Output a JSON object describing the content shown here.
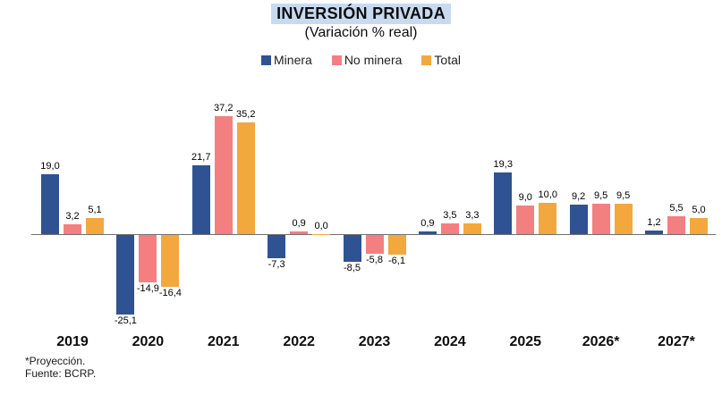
{
  "header": {
    "title": "INVERSIÓN PRIVADA",
    "subtitle": "(Variación % real)"
  },
  "footer": {
    "note": "*Proyección.",
    "source": "Fuente: BCRP."
  },
  "colors": {
    "title_highlight": "#c8daf0",
    "axis_line": "#707070",
    "minera": "#2f5293",
    "no_minera": "#f47f81",
    "total": "#f3a83e"
  },
  "chart_data": {
    "type": "bar",
    "title": "INVERSIÓN PRIVADA",
    "subtitle": "(Variación % real)",
    "categories": [
      "2019",
      "2020",
      "2021",
      "2022",
      "2023",
      "2024",
      "2025",
      "2026*",
      "2027*"
    ],
    "series": [
      {
        "name": "Minera",
        "color": "#2f5293",
        "values": [
          19.0,
          -25.1,
          21.7,
          -7.3,
          -8.5,
          0.9,
          19.3,
          9.2,
          1.2
        ]
      },
      {
        "name": "No minera",
        "color": "#f47f81",
        "values": [
          3.2,
          -14.9,
          37.2,
          0.9,
          -5.8,
          3.5,
          9.0,
          9.5,
          5.5
        ]
      },
      {
        "name": "Total",
        "color": "#f3a83e",
        "values": [
          5.1,
          -16.4,
          35.2,
          0.0,
          -6.1,
          3.3,
          10.0,
          9.5,
          5.0
        ]
      }
    ],
    "ylim": [
      -30,
      40
    ],
    "grid": false,
    "legend_position": "top",
    "value_labels": true,
    "decimal_separator": ","
  }
}
